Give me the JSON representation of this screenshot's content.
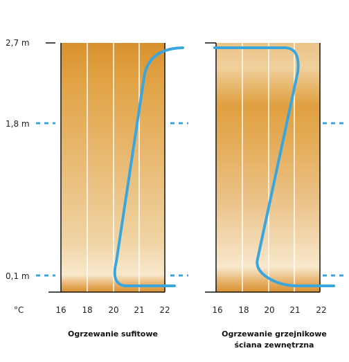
{
  "height_labels": [
    "2,7 m",
    "1,8 m",
    "0,1 m"
  ],
  "unit_label": "°C",
  "panels": [
    {
      "caption_lines": [
        "Ogrzewanie sufitowe"
      ],
      "ticks": [
        "16",
        "18",
        "20",
        "21",
        "22"
      ]
    },
    {
      "caption_lines": [
        "Ogrzewanie grzejnikowe",
        "ściana zewnętrzna"
      ],
      "ticks": [
        "16",
        "18",
        "20",
        "21",
        "22"
      ]
    }
  ],
  "colors": {
    "curve": "#3aa6dd",
    "dash": "#3aa6dd",
    "dark_orange": "#d8902f",
    "light_cream": "#f8e8cc",
    "grid": "#ffffff",
    "frame": "#111111"
  }
}
